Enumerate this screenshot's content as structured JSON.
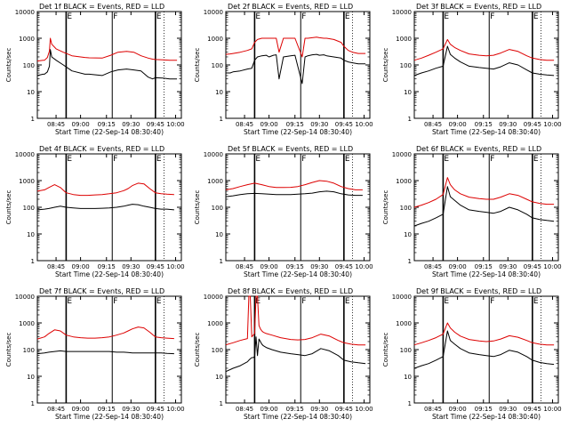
{
  "colors": {
    "events": "#000000",
    "lld": "#dd0000",
    "axis": "#000000",
    "background": "#ffffff"
  },
  "common": {
    "ylabel": "Counts/sec",
    "xlabel": "Start Time (22-Sep-14 08:30:40)",
    "y_ticks": [
      "1",
      "10",
      "100",
      "1000",
      "10000"
    ],
    "x_ticks": [
      "08:45",
      "09:00",
      "09:15",
      "09:30",
      "09:45",
      "10:00"
    ],
    "marker_labels": [
      "E",
      "F",
      "E"
    ]
  },
  "chart_data": [
    {
      "type": "line",
      "title": "Det 1f BLACK = Events, RED = LLD",
      "x": [
        0,
        4,
        5,
        7,
        8.4,
        9,
        10,
        13,
        18,
        24,
        33,
        36,
        45,
        51,
        56,
        62,
        67,
        72,
        77,
        80,
        82,
        87,
        92,
        97
      ],
      "ylim": [
        1,
        10000
      ],
      "yscale": "log",
      "xlim": [
        0,
        100
      ],
      "markers": [
        20,
        52,
        82
      ],
      "series": [
        {
          "name": "Events",
          "color": "#000000",
          "values": [
            40,
            45,
            45,
            55,
            90,
            380,
            200,
            150,
            100,
            60,
            45,
            45,
            40,
            55,
            65,
            70,
            65,
            60,
            35,
            30,
            33,
            32,
            30,
            30
          ]
        },
        {
          "name": "LLD",
          "color": "#dd0000",
          "values": [
            140,
            150,
            150,
            190,
            330,
            1000,
            600,
            400,
            300,
            220,
            190,
            185,
            180,
            230,
            300,
            320,
            300,
            220,
            180,
            165,
            160,
            155,
            150,
            150
          ]
        }
      ]
    },
    {
      "type": "line",
      "title": "Det 2f BLACK = Events, RED = LLD",
      "x": [
        0,
        3,
        5,
        10,
        15,
        18,
        20,
        22,
        25,
        28,
        30,
        33,
        35,
        37,
        40,
        45,
        48,
        53,
        55,
        57,
        60,
        63,
        65,
        68,
        70,
        75,
        80,
        82,
        85,
        88,
        92,
        97
      ],
      "ylim": [
        1,
        10000
      ],
      "yscale": "log",
      "xlim": [
        0,
        100
      ],
      "markers": [
        20,
        52,
        82
      ],
      "series": [
        {
          "name": "Events",
          "color": "#000000",
          "values": [
            50,
            50,
            55,
            60,
            70,
            75,
            150,
            200,
            220,
            230,
            200,
            230,
            240,
            30,
            200,
            220,
            230,
            20,
            200,
            220,
            240,
            250,
            230,
            240,
            220,
            200,
            180,
            150,
            130,
            120,
            110,
            110
          ]
        },
        {
          "name": "LLD",
          "color": "#dd0000",
          "values": [
            250,
            260,
            270,
            300,
            350,
            400,
            700,
            900,
            1000,
            1000,
            1000,
            1000,
            1000,
            300,
            1000,
            1000,
            1000,
            200,
            1000,
            1000,
            1050,
            1100,
            1050,
            1000,
            1000,
            900,
            700,
            500,
            350,
            300,
            270,
            270
          ]
        }
      ]
    },
    {
      "type": "line",
      "title": "Det 3f BLACK = Events, RED = LLD",
      "x": [
        0,
        5,
        10,
        15,
        20,
        23,
        25,
        28,
        32,
        38,
        45,
        50,
        55,
        60,
        66,
        72,
        78,
        82,
        87,
        92,
        97
      ],
      "ylim": [
        1,
        10000
      ],
      "yscale": "log",
      "xlim": [
        0,
        100
      ],
      "markers": [
        20,
        52,
        82
      ],
      "series": [
        {
          "name": "Events",
          "color": "#000000",
          "values": [
            40,
            50,
            60,
            75,
            90,
            500,
            250,
            180,
            130,
            90,
            80,
            75,
            70,
            85,
            120,
            100,
            65,
            50,
            45,
            42,
            40
          ]
        },
        {
          "name": "LLD",
          "color": "#dd0000",
          "values": [
            150,
            180,
            230,
            300,
            400,
            900,
            600,
            450,
            350,
            260,
            230,
            220,
            230,
            280,
            380,
            320,
            220,
            180,
            160,
            150,
            150
          ]
        }
      ]
    },
    {
      "type": "line",
      "title": "Det 4f BLACK = Events, RED = LLD",
      "x": [
        0,
        5,
        8,
        12,
        16,
        20,
        25,
        30,
        35,
        40,
        45,
        50,
        55,
        60,
        63,
        66,
        70,
        74,
        78,
        82,
        86,
        90,
        95
      ],
      "ylim": [
        1,
        10000
      ],
      "yscale": "log",
      "xlim": [
        0,
        100
      ],
      "markers": [
        20,
        52,
        82
      ],
      "series": [
        {
          "name": "Events",
          "color": "#000000",
          "values": [
            80,
            85,
            90,
            100,
            110,
            100,
            95,
            90,
            90,
            90,
            92,
            95,
            100,
            110,
            120,
            130,
            125,
            110,
            100,
            90,
            85,
            85,
            80
          ]
        },
        {
          "name": "LLD",
          "color": "#dd0000",
          "values": [
            400,
            450,
            550,
            700,
            550,
            350,
            300,
            280,
            280,
            290,
            300,
            320,
            350,
            420,
            500,
            650,
            800,
            750,
            500,
            350,
            320,
            310,
            300
          ]
        }
      ]
    },
    {
      "type": "line",
      "title": "Det 5f BLACK = Events, RED = LLD",
      "x": [
        0,
        5,
        10,
        15,
        20,
        25,
        30,
        35,
        40,
        45,
        50,
        55,
        60,
        65,
        70,
        75,
        80,
        85,
        90,
        95
      ],
      "ylim": [
        1,
        10000
      ],
      "yscale": "log",
      "xlim": [
        0,
        100
      ],
      "markers": [
        20,
        52,
        82
      ],
      "series": [
        {
          "name": "Events",
          "color": "#000000",
          "values": [
            250,
            270,
            300,
            320,
            330,
            320,
            310,
            300,
            300,
            300,
            310,
            320,
            340,
            380,
            400,
            380,
            320,
            290,
            280,
            280
          ]
        },
        {
          "name": "LLD",
          "color": "#dd0000",
          "values": [
            450,
            500,
            600,
            700,
            800,
            700,
            600,
            550,
            550,
            560,
            600,
            700,
            850,
            1000,
            950,
            800,
            600,
            500,
            450,
            450
          ]
        }
      ]
    },
    {
      "type": "line",
      "title": "Det 6f BLACK = Events, RED = LLD",
      "x": [
        0,
        5,
        10,
        15,
        20,
        23,
        25,
        28,
        32,
        38,
        45,
        50,
        55,
        60,
        66,
        72,
        78,
        82,
        87,
        92,
        97
      ],
      "ylim": [
        1,
        10000
      ],
      "yscale": "log",
      "xlim": [
        0,
        100
      ],
      "markers": [
        20,
        52,
        82
      ],
      "series": [
        {
          "name": "Events",
          "color": "#000000",
          "values": [
            20,
            25,
            30,
            40,
            55,
            600,
            250,
            180,
            120,
            80,
            70,
            65,
            60,
            70,
            100,
            80,
            55,
            40,
            35,
            32,
            30
          ]
        },
        {
          "name": "LLD",
          "color": "#dd0000",
          "values": [
            100,
            120,
            150,
            200,
            300,
            1300,
            700,
            450,
            320,
            240,
            210,
            200,
            200,
            240,
            320,
            280,
            200,
            160,
            140,
            130,
            130
          ]
        }
      ]
    },
    {
      "type": "line",
      "title": "Det 7f BLACK = Events, RED = LLD",
      "x": [
        0,
        5,
        8,
        12,
        16,
        20,
        25,
        30,
        35,
        40,
        45,
        50,
        55,
        60,
        63,
        66,
        70,
        74,
        78,
        82,
        86,
        90,
        95
      ],
      "ylim": [
        1,
        10000
      ],
      "yscale": "log",
      "xlim": [
        0,
        100
      ],
      "markers": [
        20,
        52,
        82
      ],
      "series": [
        {
          "name": "Events",
          "color": "#000000",
          "values": [
            70,
            75,
            80,
            85,
            90,
            85,
            85,
            85,
            85,
            85,
            85,
            85,
            80,
            80,
            78,
            75,
            75,
            75,
            75,
            75,
            75,
            72,
            70
          ]
        },
        {
          "name": "LLD",
          "color": "#dd0000",
          "values": [
            250,
            300,
            400,
            550,
            500,
            350,
            300,
            280,
            270,
            270,
            280,
            300,
            350,
            420,
            500,
            600,
            700,
            650,
            450,
            300,
            280,
            270,
            260
          ]
        }
      ]
    },
    {
      "type": "line",
      "title": "Det 8f BLACK = Events, RED = LLD",
      "x": [
        0,
        5,
        10,
        15,
        16,
        17,
        18,
        19,
        20,
        21,
        22,
        23,
        24,
        25,
        26,
        28,
        32,
        38,
        45,
        50,
        55,
        60,
        66,
        72,
        78,
        82,
        87,
        92,
        97
      ],
      "ylim": [
        1,
        10000
      ],
      "yscale": "log",
      "xlim": [
        0,
        100
      ],
      "markers": [
        20,
        52,
        82
      ],
      "series": [
        {
          "name": "Events",
          "color": "#000000",
          "values": [
            15,
            20,
            25,
            35,
            40,
            45,
            50,
            50,
            55,
            300,
            60,
            250,
            200,
            160,
            140,
            120,
            100,
            80,
            70,
            65,
            60,
            70,
            110,
            90,
            60,
            40,
            35,
            32,
            30
          ]
        },
        {
          "name": "LLD",
          "color": "#dd0000",
          "values": [
            150,
            180,
            220,
            260,
            10000,
            10000,
            300,
            350,
            400,
            10000,
            10000,
            800,
            600,
            500,
            450,
            400,
            350,
            280,
            240,
            230,
            240,
            280,
            380,
            320,
            220,
            180,
            160,
            150,
            150
          ]
        }
      ]
    },
    {
      "type": "line",
      "title": "Det 9f BLACK = Events, RED = LLD",
      "x": [
        0,
        5,
        10,
        15,
        20,
        23,
        25,
        28,
        32,
        38,
        45,
        50,
        55,
        60,
        66,
        72,
        78,
        82,
        87,
        92,
        97
      ],
      "ylim": [
        1,
        10000
      ],
      "yscale": "log",
      "xlim": [
        0,
        100
      ],
      "markers": [
        20,
        52,
        82
      ],
      "series": [
        {
          "name": "Events",
          "color": "#000000",
          "values": [
            20,
            25,
            30,
            40,
            55,
            500,
            220,
            160,
            110,
            75,
            65,
            60,
            55,
            65,
            95,
            80,
            55,
            40,
            33,
            30,
            28
          ]
        },
        {
          "name": "LLD",
          "color": "#dd0000",
          "values": [
            150,
            180,
            220,
            280,
            380,
            1000,
            650,
            450,
            320,
            240,
            210,
            200,
            210,
            250,
            330,
            290,
            220,
            180,
            160,
            150,
            150
          ]
        }
      ]
    }
  ]
}
